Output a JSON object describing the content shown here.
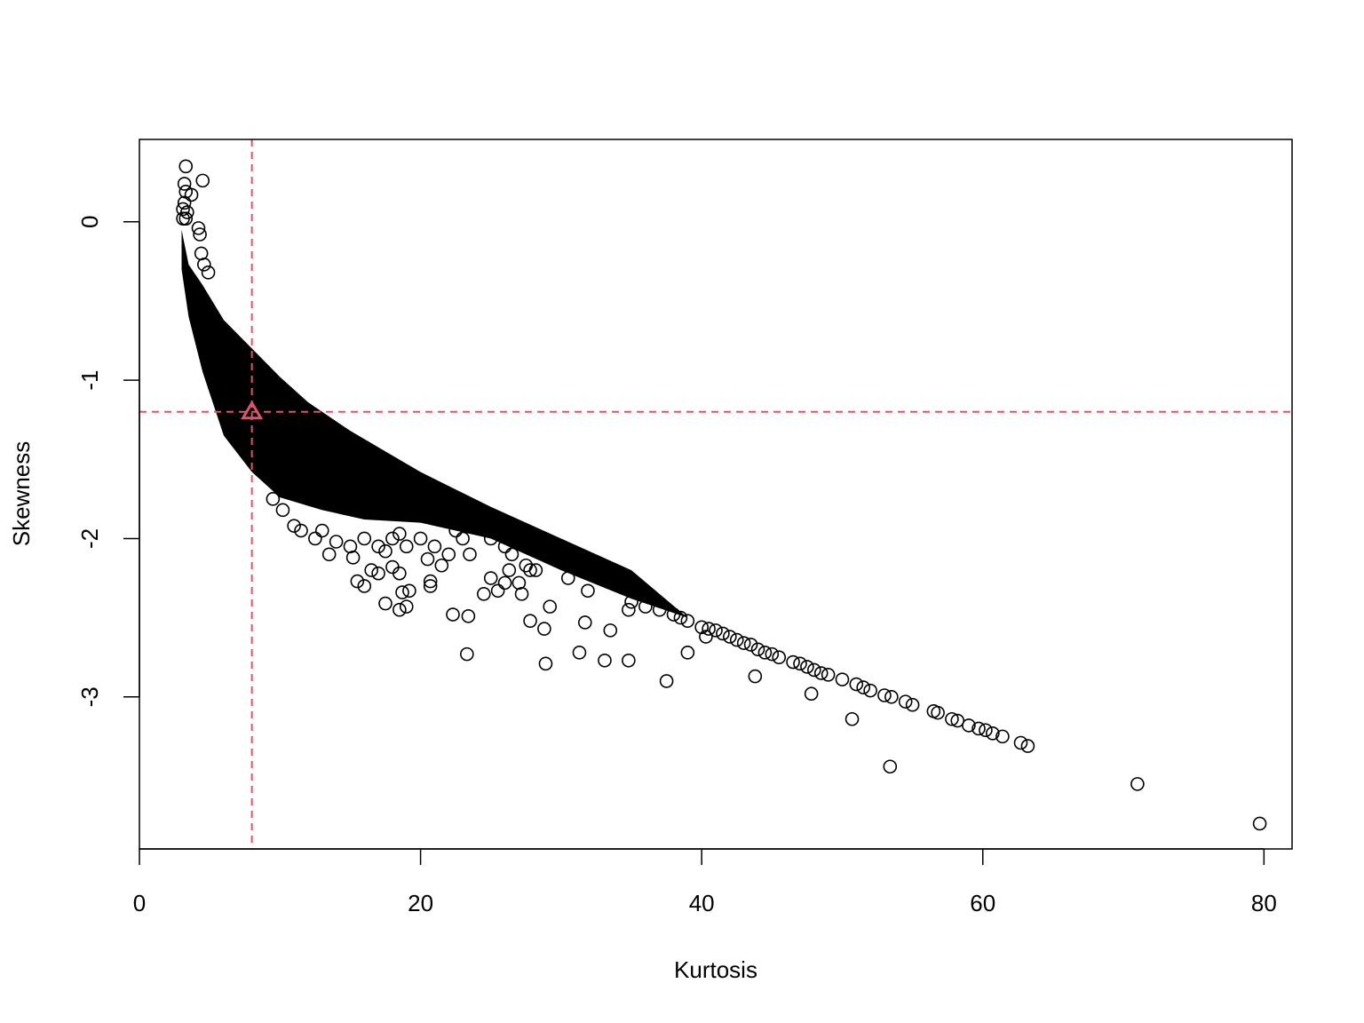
{
  "chart_data": {
    "type": "scatter",
    "title": "",
    "xlabel": "Kurtosis",
    "ylabel": "Skewness",
    "xlim": [
      0,
      82
    ],
    "ylim": [
      -3.96,
      0.52
    ],
    "x_ticks": [
      0,
      20,
      40,
      60,
      80
    ],
    "y_ticks": [
      0,
      -1,
      -2,
      -3
    ],
    "x_tick_labels": [
      "0",
      "20",
      "40",
      "60",
      "80"
    ],
    "y_tick_labels": [
      "0",
      "-1",
      "-2",
      "-3"
    ],
    "grid": false,
    "legend": "none",
    "point_color": "#000000",
    "reference_color": "#DF536B",
    "reference": {
      "x": 8.0,
      "y": -1.2
    },
    "dense_band": {
      "upper": [
        [
          3.0,
          -0.05
        ],
        [
          3.5,
          -0.27
        ],
        [
          4.5,
          -0.4
        ],
        [
          6,
          -0.62
        ],
        [
          8,
          -0.8
        ],
        [
          10,
          -0.98
        ],
        [
          12,
          -1.14
        ],
        [
          15,
          -1.32
        ],
        [
          20,
          -1.58
        ],
        [
          25,
          -1.8
        ],
        [
          30,
          -2.0
        ],
        [
          35,
          -2.2
        ],
        [
          39,
          -2.5
        ]
      ],
      "lower": [
        [
          39,
          -2.5
        ],
        [
          35,
          -2.38
        ],
        [
          30,
          -2.2
        ],
        [
          25,
          -2.0
        ],
        [
          20,
          -1.9
        ],
        [
          16,
          -1.88
        ],
        [
          13,
          -1.82
        ],
        [
          10,
          -1.74
        ],
        [
          8,
          -1.58
        ],
        [
          6,
          -1.35
        ],
        [
          4.5,
          -0.95
        ],
        [
          3.5,
          -0.6
        ],
        [
          3.0,
          -0.3
        ]
      ]
    },
    "points": [
      [
        3.3,
        0.35
      ],
      [
        4.5,
        0.26
      ],
      [
        3.2,
        0.24
      ],
      [
        3.7,
        0.17
      ],
      [
        3.3,
        0.19
      ],
      [
        3.2,
        0.12
      ],
      [
        3.1,
        0.08
      ],
      [
        3.4,
        0.06
      ],
      [
        3.1,
        0.02
      ],
      [
        3.3,
        0.02
      ],
      [
        4.2,
        -0.04
      ],
      [
        4.3,
        -0.08
      ],
      [
        4.4,
        -0.2
      ],
      [
        4.6,
        -0.27
      ],
      [
        4.9,
        -0.32
      ],
      [
        9.5,
        -1.75
      ],
      [
        10.2,
        -1.82
      ],
      [
        11,
        -1.92
      ],
      [
        11.5,
        -1.95
      ],
      [
        12.5,
        -2.0
      ],
      [
        13,
        -1.95
      ],
      [
        13.5,
        -2.1
      ],
      [
        14,
        -2.02
      ],
      [
        15,
        -2.05
      ],
      [
        15.2,
        -2.12
      ],
      [
        16,
        -2.0
      ],
      [
        17,
        -2.05
      ],
      [
        17.5,
        -2.08
      ],
      [
        18,
        -2.0
      ],
      [
        18.5,
        -1.97
      ],
      [
        19,
        -2.05
      ],
      [
        20,
        -2.0
      ],
      [
        20.5,
        -2.13
      ],
      [
        21,
        -2.05
      ],
      [
        21.5,
        -2.17
      ],
      [
        22,
        -2.1
      ],
      [
        22.5,
        -1.95
      ],
      [
        23,
        -2.0
      ],
      [
        23.5,
        -2.1
      ],
      [
        24,
        -1.9
      ],
      [
        25,
        -2.0
      ],
      [
        26,
        -2.05
      ],
      [
        15.5,
        -2.27
      ],
      [
        16,
        -2.3
      ],
      [
        16.5,
        -2.2
      ],
      [
        17,
        -2.22
      ],
      [
        18,
        -2.18
      ],
      [
        18.5,
        -2.22
      ],
      [
        18.7,
        -2.34
      ],
      [
        19.2,
        -2.33
      ],
      [
        20.7,
        -2.27
      ],
      [
        20.7,
        -2.3
      ],
      [
        17.5,
        -2.41
      ],
      [
        18.5,
        -2.45
      ],
      [
        19,
        -2.43
      ],
      [
        22.3,
        -2.48
      ],
      [
        23.4,
        -2.49
      ],
      [
        23.3,
        -2.73
      ],
      [
        24.5,
        -2.35
      ],
      [
        25,
        -2.25
      ],
      [
        25.5,
        -2.33
      ],
      [
        26,
        -2.28
      ],
      [
        26.5,
        -2.1
      ],
      [
        26.3,
        -2.2
      ],
      [
        27,
        -2.28
      ],
      [
        27.2,
        -2.35
      ],
      [
        27.5,
        -2.17
      ],
      [
        27.8,
        -2.2
      ],
      [
        28.2,
        -2.2
      ],
      [
        27.8,
        -2.52
      ],
      [
        28.8,
        -2.57
      ],
      [
        29.2,
        -2.43
      ],
      [
        28.9,
        -2.79
      ],
      [
        30.5,
        -2.25
      ],
      [
        31.9,
        -2.33
      ],
      [
        31.7,
        -2.53
      ],
      [
        31.3,
        -2.72
      ],
      [
        33.1,
        -2.77
      ],
      [
        33.5,
        -2.58
      ],
      [
        34.8,
        -2.45
      ],
      [
        34.8,
        -2.77
      ],
      [
        37.5,
        -2.9
      ],
      [
        39,
        -2.72
      ],
      [
        40.3,
        -2.62
      ],
      [
        43.8,
        -2.87
      ],
      [
        47.8,
        -2.98
      ],
      [
        50.7,
        -3.14
      ],
      [
        53.4,
        -3.44
      ],
      [
        35,
        -2.4
      ],
      [
        36,
        -2.43
      ],
      [
        37,
        -2.45
      ],
      [
        38,
        -2.48
      ],
      [
        38.5,
        -2.5
      ],
      [
        39,
        -2.52
      ],
      [
        40,
        -2.56
      ],
      [
        40.5,
        -2.57
      ],
      [
        41,
        -2.58
      ],
      [
        41.5,
        -2.6
      ],
      [
        42,
        -2.62
      ],
      [
        42.5,
        -2.64
      ],
      [
        43,
        -2.66
      ],
      [
        43.5,
        -2.67
      ],
      [
        44,
        -2.7
      ],
      [
        44.5,
        -2.72
      ],
      [
        45,
        -2.73
      ],
      [
        45.5,
        -2.75
      ],
      [
        46.5,
        -2.78
      ],
      [
        47,
        -2.79
      ],
      [
        47.5,
        -2.81
      ],
      [
        48,
        -2.83
      ],
      [
        48.5,
        -2.85
      ],
      [
        49,
        -2.86
      ],
      [
        50,
        -2.89
      ],
      [
        51,
        -2.92
      ],
      [
        51.5,
        -2.94
      ],
      [
        52,
        -2.96
      ],
      [
        53,
        -2.99
      ],
      [
        53.5,
        -3.0
      ],
      [
        54.5,
        -3.03
      ],
      [
        55,
        -3.05
      ],
      [
        56.5,
        -3.09
      ],
      [
        56.8,
        -3.1
      ],
      [
        57.8,
        -3.14
      ],
      [
        58.2,
        -3.15
      ],
      [
        59,
        -3.18
      ],
      [
        59.7,
        -3.2
      ],
      [
        60.2,
        -3.21
      ],
      [
        60.7,
        -3.23
      ],
      [
        61.4,
        -3.25
      ],
      [
        62.7,
        -3.29
      ],
      [
        63.2,
        -3.31
      ],
      [
        71,
        -3.55
      ],
      [
        79.7,
        -3.8
      ]
    ]
  }
}
